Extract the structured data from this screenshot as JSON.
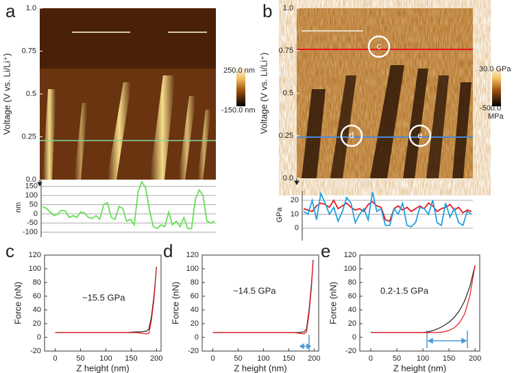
{
  "chart_data": [
    {
      "type": "image",
      "label": "a",
      "ylabel": "Voltage (V vs. Li/Li⁺)",
      "ylim": [
        0,
        1
      ],
      "yticks": [
        {
          "value": 0,
          "label": "0.0"
        },
        0.25,
        {
          "value": 0.5,
          "label": "0.5"
        },
        0.75,
        {
          "value": 1,
          "label": "1.0"
        }
      ],
      "colorbar": [
        "250.0 nm",
        "-150.0 nm"
      ]
    },
    {
      "type": "profile",
      "ylabel": "nm",
      "ylim": [
        -105,
        175
      ],
      "yticks": [
        -100,
        -50,
        0,
        50,
        100,
        150
      ],
      "grid": true,
      "series": [
        {
          "color": "#66dd55",
          "values": [
            40,
            30,
            10,
            -10,
            0,
            20,
            15,
            -20,
            -10,
            -20,
            10,
            5,
            -20,
            -25,
            -10,
            -30,
            50,
            60,
            -20,
            -30,
            40,
            30,
            -40,
            -30,
            -60,
            120,
            175,
            140,
            20,
            -70,
            -80,
            -60,
            -70,
            10,
            -60,
            -40,
            -70,
            -20,
            -80,
            -80,
            80,
            130,
            100,
            -40,
            -50,
            -40
          ]
        }
      ]
    },
    {
      "type": "image",
      "label": "b",
      "ylabel": "Voltage (V vs. Li/Li⁺)",
      "ylim": [
        0,
        1
      ],
      "yticks": [
        {
          "value": 0,
          "label": "0.0"
        },
        0.25,
        {
          "value": 0.5,
          "label": "0.5"
        },
        0.75,
        {
          "value": 1,
          "label": "1.0"
        }
      ],
      "colorbar": [
        "30.0 GPa",
        "-500.0",
        "MPa"
      ],
      "markers": [
        "c",
        "d",
        "e"
      ]
    },
    {
      "type": "profile",
      "ylabel": "GPa",
      "ylim": [
        -6,
        25
      ],
      "yticks": [
        0,
        10,
        20
      ],
      "grid": true,
      "series": [
        {
          "color": "#e8141c",
          "values": [
            14,
            13,
            12,
            16,
            18,
            17,
            15,
            20,
            14,
            16,
            18,
            15,
            13,
            14,
            12,
            17,
            19,
            16,
            15,
            6,
            5,
            14,
            16,
            13,
            15,
            12,
            14,
            16,
            14,
            18,
            16,
            12,
            14,
            15,
            17,
            13,
            15,
            11,
            13,
            12
          ]
        },
        {
          "color": "#1ea0e0",
          "values": [
            12,
            10,
            20,
            6,
            25,
            18,
            10,
            15,
            5,
            12,
            22,
            18,
            4,
            10,
            14,
            6,
            26,
            12,
            14,
            2,
            2,
            14,
            10,
            18,
            2,
            1,
            4,
            15,
            14,
            10,
            20,
            4,
            2,
            18,
            8,
            14,
            4,
            2,
            12,
            10
          ]
        }
      ]
    },
    {
      "type": "force",
      "label": "c",
      "annotation": "~15.5 GPa",
      "xlabel": "Z height (nm)",
      "ylabel": "Force (nN)",
      "xlim": [
        -21,
        209
      ],
      "xticks": [
        0,
        50,
        100,
        150,
        200
      ],
      "ylim": [
        -20,
        120
      ],
      "yticks": [
        -20,
        0,
        20,
        40,
        60,
        80,
        100,
        120
      ],
      "x": [
        0,
        20,
        40,
        60,
        80,
        100,
        120,
        140,
        160,
        170,
        180,
        185,
        190,
        195,
        200
      ],
      "series": [
        {
          "color": "#222222",
          "values": [
            7,
            7,
            7,
            7,
            7,
            7,
            7,
            7,
            8,
            8,
            9,
            12,
            30,
            60,
            103
          ]
        },
        {
          "color": "#e8141c",
          "values": [
            7,
            7,
            7,
            7,
            7,
            7,
            7,
            7,
            7,
            6,
            5,
            6,
            25,
            55,
            102
          ]
        }
      ]
    },
    {
      "type": "force",
      "label": "d",
      "annotation": "~14.5 GPa",
      "xlabel": "Z height (nm)",
      "ylabel": "Force (nN)",
      "xlim": [
        -21,
        209
      ],
      "xticks": [
        0,
        50,
        100,
        150,
        200
      ],
      "ylim": [
        -20,
        120
      ],
      "yticks": [
        -20,
        0,
        20,
        40,
        60,
        80,
        100,
        120
      ],
      "x": [
        0,
        20,
        40,
        60,
        80,
        100,
        120,
        140,
        160,
        170,
        180,
        185,
        190,
        195,
        198
      ],
      "series": [
        {
          "color": "#222222",
          "values": [
            7,
            7,
            7,
            7,
            7,
            7,
            7,
            7,
            7,
            7,
            8,
            12,
            40,
            80,
            113
          ]
        },
        {
          "color": "#e8141c",
          "values": [
            7,
            7,
            7,
            7,
            7,
            7,
            7,
            7,
            7,
            6,
            5,
            8,
            35,
            75,
            112
          ]
        }
      ]
    },
    {
      "type": "force",
      "label": "e",
      "annotation": "0.2-1.5 GPa",
      "xlabel": "Z height (nm)",
      "ylabel": "Force (nN)",
      "xlim": [
        -21,
        209
      ],
      "xticks": [
        0,
        50,
        100,
        150,
        200
      ],
      "ylim": [
        -20,
        120
      ],
      "yticks": [
        -20,
        0,
        20,
        40,
        60,
        80,
        100,
        120
      ],
      "x": [
        0,
        20,
        40,
        60,
        80,
        100,
        110,
        120,
        130,
        140,
        150,
        160,
        170,
        180,
        190,
        200
      ],
      "series": [
        {
          "color": "#222222",
          "values": [
            7,
            7,
            7,
            7,
            7,
            7,
            8,
            10,
            13,
            17,
            22,
            29,
            39,
            53,
            74,
            105
          ]
        },
        {
          "color": "#e8141c",
          "values": [
            7,
            7,
            7,
            7,
            7,
            7,
            7,
            7,
            7,
            8,
            10,
            14,
            21,
            34,
            60,
            105
          ]
        }
      ]
    }
  ]
}
